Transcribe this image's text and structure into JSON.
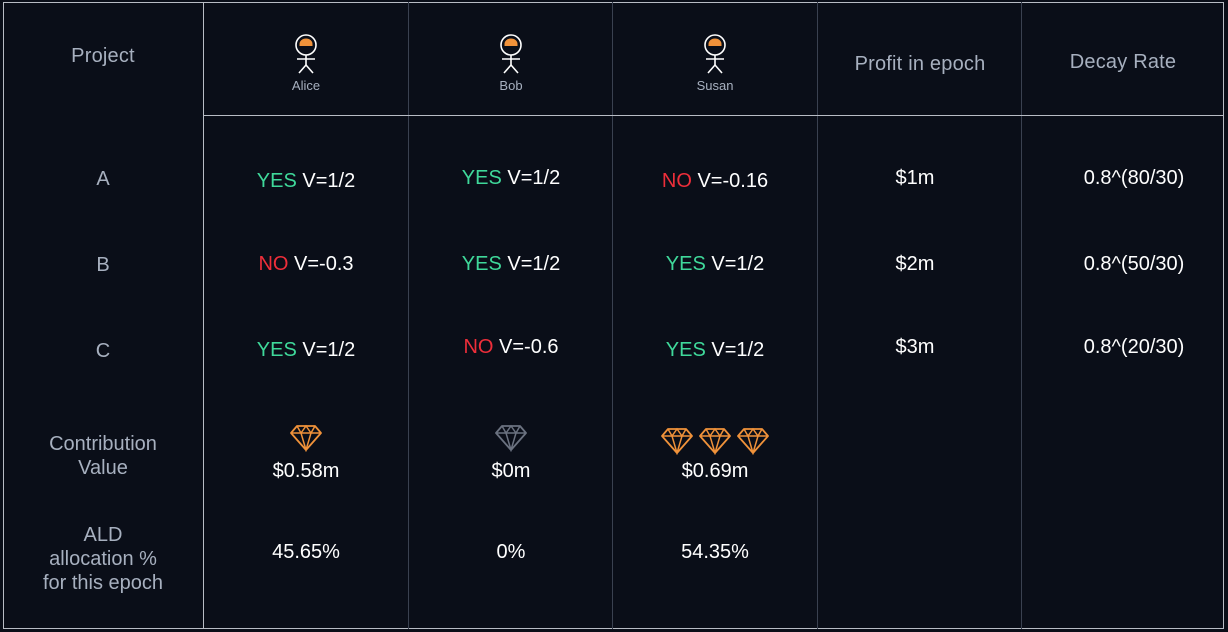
{
  "header": {
    "project_label": "Project",
    "profit_label": "Profit in epoch",
    "decay_label": "Decay Rate",
    "people": [
      {
        "name": "Alice",
        "icon": "person-icon"
      },
      {
        "name": "Bob",
        "icon": "person-icon"
      },
      {
        "name": "Susan",
        "icon": "person-icon"
      }
    ]
  },
  "rows": [
    {
      "project": "A",
      "votes": [
        {
          "vote": "YES",
          "value": "V=1/2"
        },
        {
          "vote": "YES",
          "value": "V=1/2"
        },
        {
          "vote": "NO",
          "value": "V=-0.16"
        }
      ],
      "profit": "$1m",
      "decay": "0.8^(80/30)"
    },
    {
      "project": "B",
      "votes": [
        {
          "vote": "NO",
          "value": "V=-0.3"
        },
        {
          "vote": "YES",
          "value": "V=1/2"
        },
        {
          "vote": "YES",
          "value": "V=1/2"
        }
      ],
      "profit": "$2m",
      "decay": "0.8^(50/30)"
    },
    {
      "project": "C",
      "votes": [
        {
          "vote": "YES",
          "value": "V=1/2"
        },
        {
          "vote": "NO",
          "value": "V=-0.6"
        },
        {
          "vote": "YES",
          "value": "V=1/2"
        }
      ],
      "profit": "$3m",
      "decay": "0.8^(20/30)"
    }
  ],
  "contribution": {
    "label_line1": "Contribution",
    "label_line2": "Value",
    "values": [
      {
        "amount": "$0.58m",
        "gems": 1,
        "gem_color": "#f0923a"
      },
      {
        "amount": "$0m",
        "gems": 1,
        "gem_color": "#6b7280"
      },
      {
        "amount": "$0.69m",
        "gems": 3,
        "gem_color": "#f0923a"
      }
    ]
  },
  "allocation": {
    "label_line1": "ALD",
    "label_line2": "allocation %",
    "label_line3": "for this epoch",
    "values": [
      "45.65%",
      "0%",
      "54.35%"
    ]
  },
  "colors": {
    "yes": "#3fd89a",
    "no": "#ee2e3a",
    "person_head": "#f0923a"
  }
}
